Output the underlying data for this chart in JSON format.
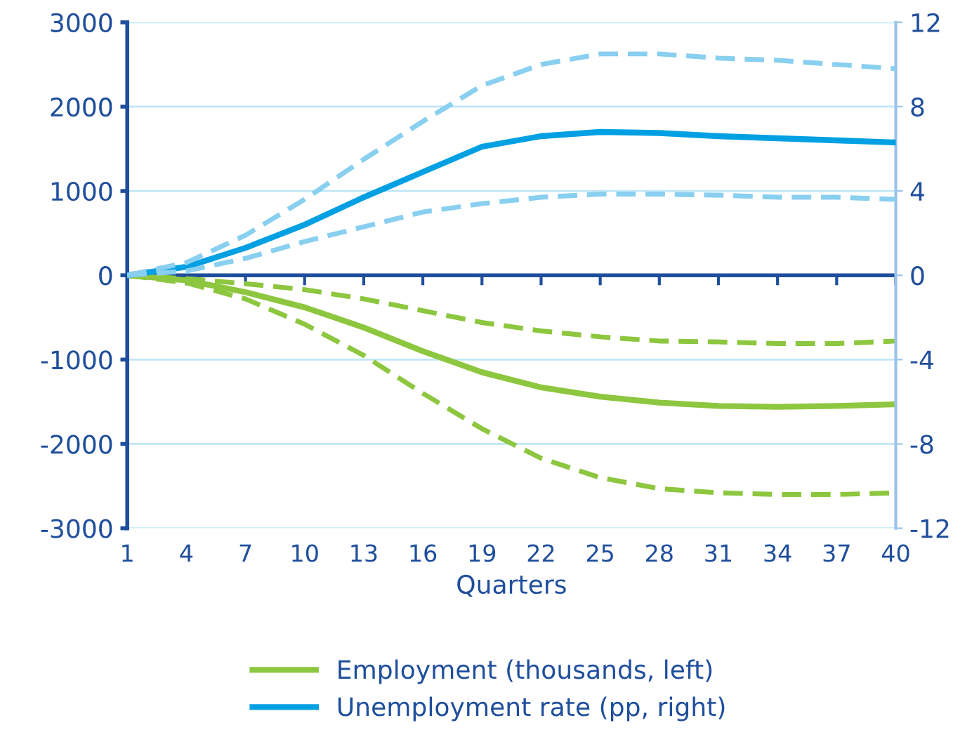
{
  "chart_data": {
    "type": "line",
    "xlabel": "Quarters",
    "x": [
      1,
      4,
      7,
      10,
      13,
      16,
      19,
      22,
      25,
      28,
      31,
      34,
      37,
      40
    ],
    "series": [
      {
        "name": "Employment (thousands, left)",
        "color": "#8dc63f",
        "line_style": "solid",
        "values": [
          0,
          -60,
          -200,
          -380,
          -620,
          -900,
          -1150,
          -1330,
          -1440,
          -1510,
          -1550,
          -1560,
          -1550,
          -1530
        ]
      },
      {
        "color": "#8dc63f",
        "line_style": "dashed",
        "values": [
          0,
          -40,
          -100,
          -170,
          -280,
          -420,
          -560,
          -660,
          -730,
          -780,
          -790,
          -810,
          -810,
          -780
        ]
      },
      {
        "color": "#8dc63f",
        "line_style": "dashed",
        "values": [
          0,
          -90,
          -280,
          -580,
          -950,
          -1400,
          -1820,
          -2170,
          -2400,
          -2530,
          -2580,
          -2600,
          -2600,
          -2580
        ]
      },
      {
        "name": "Unemployment rate (pp, right)",
        "color": "#00a0e3",
        "line_style": "solid",
        "axis": "y2",
        "values": [
          0,
          0.4,
          1.3,
          2.4,
          3.7,
          4.9,
          6.1,
          6.6,
          6.8,
          6.75,
          6.6,
          6.5,
          6.4,
          6.3
        ]
      },
      {
        "color": "#89cff0",
        "line_style": "dashed",
        "axis": "y2",
        "values": [
          0,
          0.6,
          1.9,
          3.6,
          5.5,
          7.3,
          9.0,
          10.0,
          10.5,
          10.5,
          10.3,
          10.2,
          10.0,
          9.8
        ]
      },
      {
        "color": "#89cff0",
        "line_style": "dashed",
        "axis": "y2",
        "values": [
          0,
          0.2,
          0.8,
          1.6,
          2.3,
          3.0,
          3.4,
          3.7,
          3.85,
          3.85,
          3.8,
          3.7,
          3.7,
          3.6
        ]
      }
    ],
    "xlim": [
      1,
      40
    ],
    "xticks": [
      1,
      4,
      7,
      10,
      13,
      16,
      19,
      22,
      25,
      28,
      31,
      34,
      37,
      40
    ],
    "ylim": [
      -3000,
      3000
    ],
    "yticks": [
      -3000,
      -2000,
      -1000,
      0,
      1000,
      2000,
      3000
    ],
    "y2lim": [
      -12,
      12
    ],
    "y2ticks": [
      -12,
      -8,
      -4,
      0,
      4,
      8,
      12
    ],
    "ref_lines": [
      {
        "axis": "y",
        "value": 0,
        "color": "#1f4e9c"
      }
    ],
    "grid": "y",
    "legend": "bottom",
    "marker": "none"
  }
}
